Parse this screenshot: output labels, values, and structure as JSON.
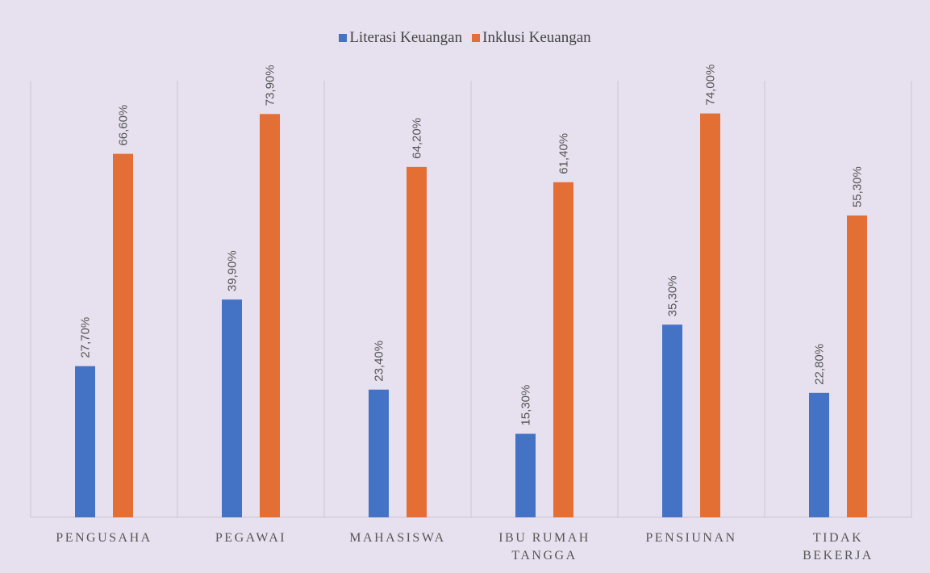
{
  "chart_data": {
    "type": "bar",
    "categories": [
      "PENGUSAHA",
      "PEGAWAI",
      "MAHASISWA",
      "IBU RUMAH TANGGA",
      "PENSIUNAN",
      "TIDAK BEKERJA"
    ],
    "series": [
      {
        "name": "Literasi Keuangan",
        "color": "#4472c4",
        "values": [
          27.7,
          39.9,
          23.4,
          15.3,
          35.3,
          22.8
        ],
        "value_labels": [
          "27,70%",
          "39,90%",
          "23,40%",
          "15,30%",
          "35,30%",
          "22,80%"
        ]
      },
      {
        "name": "Inklusi Keuangan",
        "color": "#e46f35",
        "values": [
          66.6,
          73.9,
          64.2,
          61.4,
          74.0,
          55.3
        ],
        "value_labels": [
          "66,60%",
          "73,90%",
          "64,20%",
          "61,40%",
          "74,00%",
          "55,30%"
        ]
      }
    ],
    "ylim": [
      0,
      80
    ],
    "legend": "top"
  }
}
